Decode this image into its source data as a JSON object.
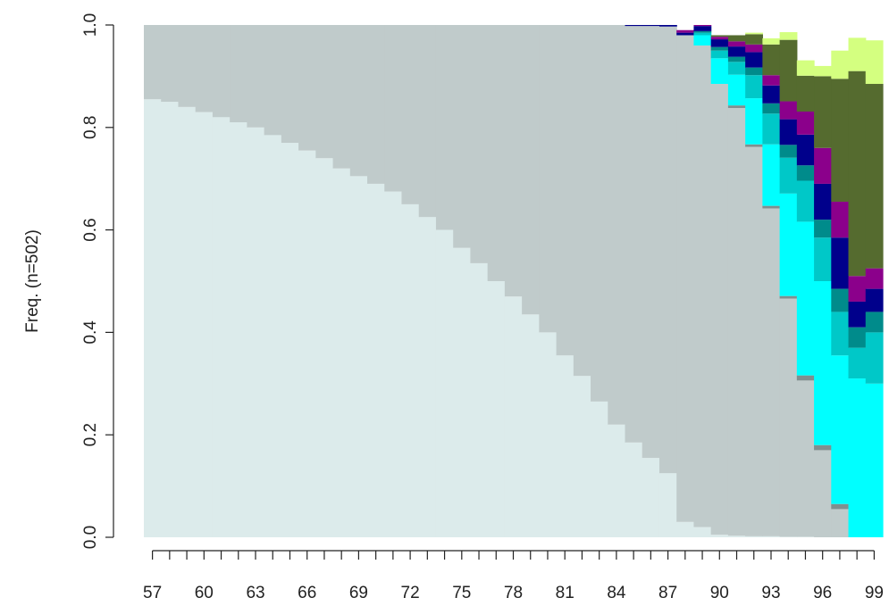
{
  "chart_data": {
    "type": "area",
    "stacked": true,
    "step": true,
    "ylabel": "Freq. (n=502)",
    "xlabel": "",
    "title": "",
    "xlim": [
      57,
      99
    ],
    "ylim": [
      0,
      1
    ],
    "x_tick_labels": [
      "57",
      "60",
      "63",
      "66",
      "69",
      "72",
      "75",
      "78",
      "81",
      "84",
      "87",
      "90",
      "93",
      "96",
      "99"
    ],
    "y_tick_labels": [
      "0.0",
      "0.2",
      "0.4",
      "0.6",
      "0.8",
      "1.0"
    ],
    "y_ticks": [
      0,
      0.2,
      0.4,
      0.6,
      0.8,
      1.0
    ],
    "x": [
      57,
      58,
      59,
      60,
      61,
      62,
      63,
      64,
      65,
      66,
      67,
      68,
      69,
      70,
      71,
      72,
      73,
      74,
      75,
      76,
      77,
      78,
      79,
      80,
      81,
      82,
      83,
      84,
      85,
      86,
      87,
      88,
      89,
      90,
      91,
      92,
      93,
      94,
      95,
      96,
      97,
      98,
      99
    ],
    "series": [
      {
        "color": "#dcebeb",
        "values": [
          0.855,
          0.85,
          0.84,
          0.83,
          0.82,
          0.81,
          0.8,
          0.785,
          0.77,
          0.755,
          0.74,
          0.72,
          0.705,
          0.69,
          0.675,
          0.65,
          0.625,
          0.6,
          0.565,
          0.535,
          0.5,
          0.47,
          0.435,
          0.4,
          0.355,
          0.315,
          0.265,
          0.22,
          0.185,
          0.155,
          0.125,
          0.1,
          0.085,
          0.07,
          0.05,
          0.035,
          0.025,
          0.01,
          0.003,
          0.0,
          0.0,
          0.0,
          0.0
        ]
      },
      {
        "color": "#c0cbcb",
        "values": [
          0.145,
          0.15,
          0.16,
          0.17,
          0.18,
          0.19,
          0.2,
          0.215,
          0.23,
          0.245,
          0.26,
          0.28,
          0.295,
          0.31,
          0.325,
          0.35,
          0.375,
          0.4,
          0.435,
          0.465,
          0.5,
          0.53,
          0.565,
          0.6,
          0.645,
          0.685,
          0.735,
          0.78,
          0.815,
          0.845,
          0.875,
          0.898,
          0.905,
          0.91,
          0.915,
          0.92,
          0.935,
          0.92,
          0.882,
          0.835,
          0.76,
          0.64,
          0.47
        ]
      },
      {
        "color": "#7f8f8f",
        "values": [
          0,
          0,
          0,
          0,
          0,
          0,
          0,
          0,
          0,
          0,
          0,
          0,
          0,
          0,
          0,
          0,
          0,
          0,
          0,
          0,
          0,
          0,
          0,
          0,
          0,
          0,
          0,
          0,
          0,
          0,
          0,
          0,
          0,
          0,
          0.005,
          0.005,
          0.005,
          0.005,
          0.005,
          0.005,
          0.005,
          0.01,
          0.005
        ]
      },
      {
        "color": "#00ffff",
        "values": [
          0,
          0,
          0,
          0,
          0,
          0,
          0,
          0,
          0,
          0,
          0,
          0,
          0,
          0,
          0,
          0,
          0,
          0,
          0,
          0,
          0,
          0,
          0,
          0,
          0,
          0,
          0,
          0,
          0,
          0,
          0,
          0,
          0,
          0,
          0,
          0,
          0,
          0,
          0.002,
          0.005,
          0.01,
          0.02,
          0.03
        ]
      },
      {
        "color": "#00c8c8",
        "values": [
          0,
          0,
          0,
          0,
          0,
          0,
          0,
          0,
          0,
          0,
          0,
          0,
          0,
          0,
          0,
          0,
          0,
          0,
          0,
          0,
          0,
          0,
          0,
          0,
          0,
          0,
          0,
          0,
          0,
          0,
          0,
          0,
          0,
          0,
          0,
          0,
          0,
          0,
          0,
          0,
          0,
          0.005,
          0.01
        ]
      },
      {
        "color": "#008b8b",
        "values": [
          0,
          0,
          0,
          0,
          0,
          0,
          0,
          0,
          0,
          0,
          0,
          0,
          0,
          0,
          0,
          0,
          0,
          0,
          0,
          0,
          0,
          0,
          0,
          0,
          0,
          0,
          0,
          0,
          0,
          0,
          0,
          0,
          0,
          0,
          0,
          0,
          0,
          0,
          0,
          0,
          0,
          0,
          0.005
        ]
      },
      {
        "color": "#00008b",
        "values": [
          0,
          0,
          0,
          0,
          0,
          0,
          0,
          0,
          0,
          0,
          0,
          0,
          0,
          0,
          0,
          0,
          0,
          0,
          0,
          0,
          0,
          0,
          0,
          0,
          0,
          0,
          0,
          0,
          0.002,
          0.002,
          0.003,
          0.003,
          0.003,
          0.003,
          0.003,
          0.003,
          0.003,
          0.003,
          0.003,
          0.003,
          0.003,
          0.003,
          0.003
        ]
      },
      {
        "color": "#8b008b",
        "values": [
          0,
          0,
          0,
          0,
          0,
          0,
          0,
          0,
          0,
          0,
          0,
          0,
          0,
          0,
          0,
          0,
          0,
          0,
          0,
          0,
          0,
          0,
          0,
          0,
          0,
          0,
          0,
          0,
          0,
          0,
          0,
          0,
          0,
          0,
          0,
          0,
          0,
          0,
          0,
          0,
          0,
          0,
          0
        ]
      },
      {
        "color": "#556b2f",
        "values": [
          0,
          0,
          0,
          0,
          0,
          0,
          0,
          0,
          0,
          0,
          0,
          0,
          0,
          0,
          0,
          0,
          0,
          0,
          0,
          0,
          0,
          0,
          0,
          0,
          0,
          0,
          0,
          0,
          0,
          0,
          0,
          0,
          0,
          0,
          0,
          0,
          0,
          0,
          0,
          0,
          0,
          0,
          0
        ]
      },
      {
        "color": "#d4ff80",
        "values": [
          0,
          0,
          0,
          0,
          0,
          0,
          0,
          0,
          0,
          0,
          0,
          0,
          0,
          0,
          0,
          0,
          0,
          0,
          0,
          0,
          0,
          0,
          0,
          0,
          0,
          0,
          0,
          0,
          0,
          0,
          0,
          0,
          0,
          0,
          0,
          0,
          0,
          0,
          0,
          0,
          0,
          0,
          0
        ]
      }
    ],
    "tail_layers": {
      "note_free": true,
      "x": [
        88,
        89,
        90,
        91,
        92,
        93,
        94,
        95,
        96,
        97,
        98,
        99
      ],
      "layers": [
        {
          "color": "#dcebeb",
          "values": [
            0.03,
            0.02,
            0.005,
            0.003,
            0.002,
            0.002,
            0.001,
            0.001,
            0.0,
            0.0,
            0.0,
            0.0
          ]
        },
        {
          "color": "#c0cbcb",
          "values": [
            0.95,
            0.94,
            0.88,
            0.835,
            0.76,
            0.64,
            0.465,
            0.305,
            0.17,
            0.055,
            0.0,
            0.0
          ]
        },
        {
          "color": "#7f8f8f",
          "values": [
            0.0,
            0.0,
            0.0,
            0.005,
            0.005,
            0.005,
            0.005,
            0.01,
            0.01,
            0.01,
            0.0,
            0.0
          ]
        },
        {
          "color": "#00ffff",
          "values": [
            0.0,
            0.02,
            0.05,
            0.06,
            0.09,
            0.12,
            0.2,
            0.3,
            0.32,
            0.29,
            0.31,
            0.3
          ]
        },
        {
          "color": "#00c8c8",
          "values": [
            0.0,
            0.005,
            0.015,
            0.025,
            0.045,
            0.06,
            0.07,
            0.08,
            0.085,
            0.085,
            0.06,
            0.1
          ]
        },
        {
          "color": "#008b8b",
          "values": [
            0.0,
            0.003,
            0.007,
            0.01,
            0.015,
            0.02,
            0.025,
            0.03,
            0.035,
            0.045,
            0.04,
            0.04
          ]
        },
        {
          "color": "#00008b",
          "values": [
            0.005,
            0.01,
            0.015,
            0.02,
            0.03,
            0.035,
            0.05,
            0.06,
            0.07,
            0.1,
            0.05,
            0.045
          ]
        },
        {
          "color": "#8b008b",
          "values": [
            0.005,
            0.002,
            0.005,
            0.01,
            0.015,
            0.02,
            0.035,
            0.045,
            0.07,
            0.07,
            0.05,
            0.04
          ]
        },
        {
          "color": "#556b2f",
          "values": [
            0.0,
            0.0,
            0.003,
            0.012,
            0.02,
            0.06,
            0.12,
            0.07,
            0.14,
            0.24,
            0.4,
            0.36
          ]
        },
        {
          "color": "#d4ff80",
          "values": [
            0.0,
            0.0,
            0.0,
            0.0,
            0.003,
            0.012,
            0.015,
            0.03,
            0.02,
            0.055,
            0.065,
            0.085
          ]
        }
      ]
    }
  }
}
